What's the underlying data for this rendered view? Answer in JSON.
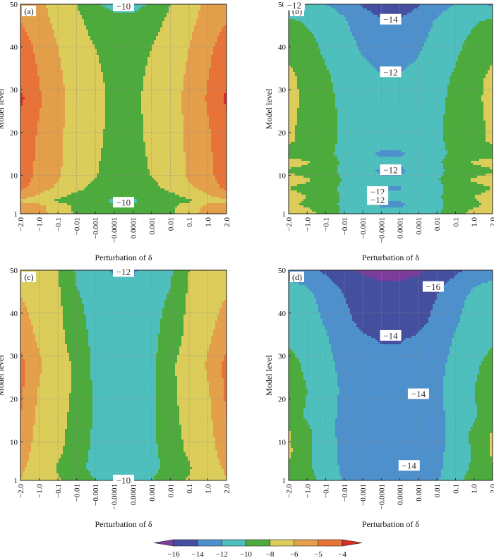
{
  "figure": {
    "colors": {
      "lt16": "#7a3d99",
      "b16_14": "#454f9f",
      "b14_12": "#4e90cc",
      "b12_10": "#4ebfbd",
      "b10_8": "#4cab3c",
      "b8_6": "#dccc59",
      "b6_5": "#e39f4a",
      "b5_4": "#e77338",
      "gt4": "#d62b26"
    },
    "colorbar": {
      "ticks": [
        "-16",
        "-14",
        "-12",
        "-10",
        "-8",
        "-6",
        "-5",
        "-4"
      ]
    }
  },
  "chart_data": [
    {
      "type": "heatmap",
      "panel_label": "(a)",
      "xlabel": "Perturbation of δ",
      "ylabel": "Model level",
      "x_ticks": [
        "-2.0",
        "-1.0",
        "-0.1",
        "-0.01",
        "-0.001",
        "-0.0001",
        "0.0001",
        "0.001",
        "0.01",
        "0.1",
        "1.0",
        "2.0"
      ],
      "y_ticks": [
        1,
        10,
        20,
        30,
        40,
        50
      ],
      "ylim": [
        1,
        50
      ],
      "grid": true,
      "contour_levels": [
        -16,
        -14,
        -12,
        -10,
        -8,
        -6,
        -5,
        -4
      ],
      "contour_labels": [
        {
          "text": "-10",
          "x_index": 5.5,
          "level": 49.6
        },
        {
          "text": "-10",
          "x_index": 5.5,
          "level": 3.7
        }
      ],
      "profile": [
        {
          "level": 1,
          "values": [
            -5.2,
            -5.5,
            -6.5,
            -8.4,
            -8.6,
            -8.8,
            -8.8,
            -8.6,
            -8.4,
            -6.5,
            -5.5,
            -5.2
          ]
        },
        {
          "level": 3,
          "values": [
            -5.3,
            -5.7,
            -6.8,
            -8.6,
            -9.2,
            -9.6,
            -9.6,
            -9.2,
            -8.6,
            -6.8,
            -5.7,
            -5.3
          ]
        },
        {
          "level": 4,
          "values": [
            -6.2,
            -7.0,
            -8.5,
            -9.2,
            -9.8,
            -10.3,
            -10.3,
            -9.8,
            -9.2,
            -8.5,
            -7.0,
            -6.2
          ]
        },
        {
          "level": 5,
          "values": [
            -5.6,
            -6.2,
            -7.5,
            -8.8,
            -9.2,
            -9.4,
            -9.4,
            -9.2,
            -8.8,
            -7.5,
            -6.2,
            -5.6
          ]
        },
        {
          "level": 7,
          "values": [
            -4.8,
            -5.4,
            -6.2,
            -7.4,
            -8.6,
            -9.2,
            -9.2,
            -8.6,
            -7.4,
            -6.2,
            -5.4,
            -4.8
          ]
        },
        {
          "level": 10,
          "values": [
            -4.6,
            -5.2,
            -5.8,
            -6.9,
            -7.9,
            -8.8,
            -8.8,
            -7.9,
            -6.9,
            -5.8,
            -5.2,
            -4.6
          ]
        },
        {
          "level": 20,
          "values": [
            -4.4,
            -5.1,
            -5.7,
            -6.7,
            -7.5,
            -8.6,
            -8.6,
            -7.5,
            -6.7,
            -5.7,
            -5.1,
            -4.4
          ]
        },
        {
          "level": 28,
          "values": [
            -3.8,
            -4.9,
            -5.6,
            -6.6,
            -7.4,
            -8.5,
            -8.5,
            -7.4,
            -6.6,
            -5.6,
            -4.9,
            -3.8
          ]
        },
        {
          "level": 32,
          "values": [
            -4.2,
            -5.0,
            -5.7,
            -6.7,
            -7.5,
            -8.6,
            -8.6,
            -7.5,
            -6.7,
            -5.7,
            -5.0,
            -4.2
          ]
        },
        {
          "level": 40,
          "values": [
            -4.6,
            -5.2,
            -6.0,
            -7.0,
            -8.0,
            -8.9,
            -8.9,
            -8.0,
            -7.0,
            -6.0,
            -5.2,
            -4.6
          ]
        },
        {
          "level": 46,
          "values": [
            -5.0,
            -5.5,
            -6.3,
            -7.5,
            -8.8,
            -9.3,
            -9.3,
            -8.8,
            -7.5,
            -6.3,
            -5.5,
            -5.0
          ]
        },
        {
          "level": 50,
          "values": [
            -5.2,
            -5.7,
            -6.6,
            -8.0,
            -9.8,
            -10.6,
            -10.6,
            -9.8,
            -8.0,
            -6.6,
            -5.7,
            -5.2
          ]
        }
      ]
    },
    {
      "type": "heatmap",
      "panel_label": "(b)",
      "xlabel": "Perturbation of δ",
      "ylabel": "Model level",
      "x_ticks": [
        "-2.0",
        "-1.0",
        "-0.1",
        "-0.01",
        "-0.001",
        "-0.0001",
        "0.0001",
        "0.001",
        "0.01",
        "0.1",
        "1.0",
        "2.0"
      ],
      "y_ticks": [
        1,
        10,
        20,
        30,
        40,
        50
      ],
      "ylim": [
        1,
        50
      ],
      "grid": true,
      "contour_levels": [
        -16,
        -14,
        -12,
        -10,
        -8,
        -6,
        -5,
        -4
      ],
      "contour_labels": [
        {
          "text": "-12",
          "x_index": 0.3,
          "level": 49.8
        },
        {
          "text": "-14",
          "x_index": 5.5,
          "level": 46.5
        },
        {
          "text": "-12",
          "x_index": 5.5,
          "level": 34.2
        },
        {
          "text": "-12",
          "x_index": 5.5,
          "level": 11.3
        },
        {
          "text": "-12",
          "x_index": 4.8,
          "level": 6.2
        },
        {
          "text": "-12",
          "x_index": 4.8,
          "level": 4.3
        }
      ],
      "profile": [
        {
          "level": 1,
          "values": [
            -7.0,
            -7.4,
            -8.5,
            -10.4,
            -11.0,
            -11.4,
            -11.4,
            -11.0,
            -10.4,
            -8.5,
            -7.5,
            -7.0
          ]
        },
        {
          "level": 3,
          "values": [
            -7.8,
            -8.2,
            -9.0,
            -10.5,
            -11.5,
            -12.2,
            -12.2,
            -11.5,
            -10.5,
            -9.0,
            -8.2,
            -7.8
          ]
        },
        {
          "level": 5,
          "values": [
            -7.6,
            -8.0,
            -8.8,
            -10.4,
            -11.3,
            -11.8,
            -11.8,
            -11.3,
            -10.4,
            -8.8,
            -8.0,
            -7.6
          ]
        },
        {
          "level": 7,
          "values": [
            -8.0,
            -8.4,
            -9.0,
            -10.6,
            -11.4,
            -12.1,
            -12.1,
            -11.4,
            -10.6,
            -9.0,
            -8.4,
            -8.0
          ]
        },
        {
          "level": 9,
          "values": [
            -7.4,
            -7.8,
            -8.6,
            -10.2,
            -11.0,
            -11.6,
            -11.6,
            -11.0,
            -10.2,
            -8.6,
            -7.8,
            -7.4
          ]
        },
        {
          "level": 11,
          "values": [
            -8.2,
            -8.6,
            -9.2,
            -10.6,
            -11.5,
            -12.3,
            -12.3,
            -11.5,
            -10.6,
            -9.2,
            -8.6,
            -8.2
          ]
        },
        {
          "level": 13,
          "values": [
            -7.4,
            -7.8,
            -8.8,
            -10.4,
            -11.2,
            -11.6,
            -11.6,
            -11.2,
            -10.4,
            -8.8,
            -7.8,
            -7.4
          ]
        },
        {
          "level": 15,
          "values": [
            -8.6,
            -8.8,
            -9.4,
            -10.8,
            -11.6,
            -12.2,
            -12.2,
            -11.6,
            -10.8,
            -9.4,
            -8.8,
            -8.6
          ]
        },
        {
          "level": 18,
          "values": [
            -7.8,
            -8.4,
            -9.2,
            -10.5,
            -11.1,
            -11.5,
            -11.5,
            -11.1,
            -10.5,
            -9.2,
            -8.4,
            -7.8
          ]
        },
        {
          "level": 22,
          "values": [
            -7.6,
            -8.6,
            -9.4,
            -10.3,
            -11.0,
            -11.4,
            -11.4,
            -11.0,
            -10.3,
            -9.4,
            -8.6,
            -7.6
          ]
        },
        {
          "level": 28,
          "values": [
            -7.2,
            -8.6,
            -9.6,
            -10.4,
            -11.0,
            -11.5,
            -11.5,
            -11.0,
            -10.4,
            -9.6,
            -8.6,
            -7.2
          ]
        },
        {
          "level": 33,
          "values": [
            -7.4,
            -8.8,
            -9.8,
            -10.5,
            -11.3,
            -11.9,
            -11.9,
            -11.3,
            -10.5,
            -9.8,
            -8.8,
            -7.4
          ]
        },
        {
          "level": 37,
          "values": [
            -8.2,
            -9.2,
            -10.1,
            -11.0,
            -11.9,
            -12.5,
            -12.5,
            -11.9,
            -11.0,
            -10.1,
            -9.2,
            -8.2
          ]
        },
        {
          "level": 42,
          "values": [
            -8.8,
            -9.6,
            -10.5,
            -11.4,
            -12.5,
            -13.2,
            -13.2,
            -12.5,
            -11.4,
            -10.5,
            -9.6,
            -8.8
          ]
        },
        {
          "level": 46,
          "values": [
            -9.6,
            -10.2,
            -11.0,
            -11.8,
            -13.0,
            -13.8,
            -13.8,
            -13.0,
            -11.8,
            -11.0,
            -10.2,
            -9.6
          ]
        },
        {
          "level": 50,
          "values": [
            -12.2,
            -12.0,
            -12.0,
            -12.6,
            -14.2,
            -14.9,
            -14.9,
            -14.2,
            -12.6,
            -12.0,
            -12.0,
            -12.2
          ]
        }
      ]
    },
    {
      "type": "heatmap",
      "panel_label": "(c)",
      "xlabel": "Perturbation of δ",
      "ylabel": "Model level",
      "x_ticks": [
        "-2.0",
        "-1.0",
        "-0.1",
        "-0.01",
        "-0.001",
        "-0.0001",
        "0.0001",
        "0.001",
        "0.01",
        "0.1",
        "1.0",
        "2.0"
      ],
      "y_ticks": [
        1,
        10,
        20,
        30,
        40,
        50
      ],
      "ylim": [
        1,
        50
      ],
      "grid": true,
      "contour_levels": [
        -16,
        -14,
        -12,
        -10,
        -8,
        -6,
        -5,
        -4
      ],
      "contour_labels": [
        {
          "text": "-12",
          "x_index": 5.5,
          "level": 49.7
        },
        {
          "text": "-10",
          "x_index": 5.5,
          "level": 1.1
        }
      ],
      "profile": [
        {
          "level": 1,
          "values": [
            -6.0,
            -6.8,
            -7.8,
            -8.8,
            -10.0,
            -10.4,
            -10.4,
            -10.0,
            -8.8,
            -7.8,
            -6.8,
            -6.0
          ]
        },
        {
          "level": 4,
          "values": [
            -5.8,
            -6.6,
            -8.2,
            -9.4,
            -10.6,
            -11.0,
            -11.0,
            -10.6,
            -9.4,
            -8.2,
            -6.6,
            -5.8
          ]
        },
        {
          "level": 8,
          "values": [
            -5.4,
            -6.5,
            -7.6,
            -9.0,
            -10.5,
            -11.1,
            -11.1,
            -10.5,
            -9.0,
            -7.6,
            -6.5,
            -5.4
          ]
        },
        {
          "level": 15,
          "values": [
            -5.0,
            -6.3,
            -7.4,
            -8.6,
            -10.3,
            -11.0,
            -11.0,
            -10.3,
            -8.6,
            -7.4,
            -6.3,
            -5.0
          ]
        },
        {
          "level": 22,
          "values": [
            -4.8,
            -6.1,
            -7.2,
            -8.4,
            -10.4,
            -11.1,
            -11.1,
            -10.4,
            -8.4,
            -7.2,
            -6.1,
            -4.8
          ]
        },
        {
          "level": 28,
          "values": [
            -4.7,
            -5.8,
            -7.0,
            -8.4,
            -10.5,
            -11.2,
            -11.2,
            -10.5,
            -8.4,
            -7.0,
            -5.8,
            -4.7
          ]
        },
        {
          "level": 34,
          "values": [
            -5.2,
            -6.2,
            -7.4,
            -9.0,
            -10.6,
            -11.3,
            -11.3,
            -10.6,
            -9.0,
            -7.4,
            -6.2,
            -5.2
          ]
        },
        {
          "level": 42,
          "values": [
            -5.8,
            -6.6,
            -7.6,
            -9.6,
            -10.8,
            -11.5,
            -11.5,
            -10.8,
            -9.6,
            -7.6,
            -6.6,
            -5.8
          ]
        },
        {
          "level": 46,
          "values": [
            -6.2,
            -6.8,
            -7.8,
            -10.0,
            -11.0,
            -11.7,
            -11.7,
            -11.0,
            -10.0,
            -7.8,
            -6.8,
            -6.2
          ]
        },
        {
          "level": 50,
          "values": [
            -6.6,
            -7.0,
            -8.0,
            -10.3,
            -11.5,
            -12.2,
            -12.2,
            -11.5,
            -10.3,
            -8.0,
            -7.0,
            -6.6
          ]
        }
      ]
    },
    {
      "type": "heatmap",
      "panel_label": "(d)",
      "xlabel": "Perturbation of δ",
      "ylabel": "Model level",
      "x_ticks": [
        "-2.0",
        "-1.0",
        "-0.1",
        "-0.01",
        "-0.001",
        "-0.0001",
        "0.0001",
        "0.001",
        "0.01",
        "0.1",
        "1.0",
        "2.0"
      ],
      "y_ticks": [
        1,
        10,
        20,
        30,
        40,
        50
      ],
      "ylim": [
        1,
        50
      ],
      "grid": true,
      "contour_levels": [
        -16,
        -14,
        -12,
        -10,
        -8,
        -6,
        -5,
        -4
      ],
      "contour_labels": [
        {
          "text": "-16",
          "x_index": 7.8,
          "level": 46.2
        },
        {
          "text": "-14",
          "x_index": 5.5,
          "level": 34.8
        },
        {
          "text": "-14",
          "x_index": 7.0,
          "level": 21.2
        },
        {
          "text": "-14",
          "x_index": 6.5,
          "level": 4.5
        }
      ],
      "profile": [
        {
          "level": 1,
          "values": [
            -8.5,
            -9.5,
            -10.4,
            -12.2,
            -12.8,
            -13.2,
            -13.2,
            -12.8,
            -12.2,
            -10.4,
            -9.5,
            -8.5
          ]
        },
        {
          "level": 4,
          "values": [
            -8.2,
            -9.8,
            -10.6,
            -12.6,
            -13.4,
            -13.7,
            -13.7,
            -13.4,
            -12.6,
            -10.6,
            -9.8,
            -8.2
          ]
        },
        {
          "level": 8,
          "values": [
            -7.6,
            -9.8,
            -10.8,
            -12.8,
            -13.2,
            -13.4,
            -13.4,
            -13.2,
            -12.8,
            -10.8,
            -9.8,
            -7.6
          ]
        },
        {
          "level": 12,
          "values": [
            -7.8,
            -9.6,
            -11.0,
            -12.8,
            -13.2,
            -13.4,
            -13.4,
            -13.2,
            -12.8,
            -11.0,
            -9.6,
            -7.8
          ]
        },
        {
          "level": 16,
          "values": [
            -9.2,
            -10.2,
            -11.2,
            -12.6,
            -13.3,
            -13.6,
            -13.6,
            -13.3,
            -12.6,
            -11.2,
            -10.2,
            -9.2
          ]
        },
        {
          "level": 22,
          "values": [
            -9.0,
            -10.0,
            -11.0,
            -12.4,
            -13.2,
            -13.6,
            -13.6,
            -13.2,
            -12.4,
            -11.0,
            -10.0,
            -9.0
          ]
        },
        {
          "level": 28,
          "values": [
            -9.2,
            -10.4,
            -11.4,
            -12.6,
            -13.2,
            -13.6,
            -13.6,
            -13.2,
            -12.6,
            -11.4,
            -10.4,
            -9.2
          ]
        },
        {
          "level": 34,
          "values": [
            -10.4,
            -11.0,
            -11.8,
            -13.0,
            -13.8,
            -14.1,
            -14.1,
            -13.8,
            -13.0,
            -11.8,
            -11.0,
            -10.4
          ]
        },
        {
          "level": 38,
          "values": [
            -10.6,
            -11.2,
            -12.2,
            -13.6,
            -14.4,
            -14.8,
            -14.8,
            -14.4,
            -13.6,
            -12.2,
            -11.2,
            -10.6
          ]
        },
        {
          "level": 44,
          "values": [
            -11.0,
            -11.6,
            -12.6,
            -14.0,
            -14.8,
            -15.2,
            -15.2,
            -14.8,
            -14.0,
            -12.6,
            -11.6,
            -11.0
          ]
        },
        {
          "level": 47,
          "values": [
            -11.8,
            -12.2,
            -13.4,
            -14.6,
            -15.5,
            -15.9,
            -15.9,
            -15.5,
            -14.6,
            -13.4,
            -12.2,
            -11.8
          ]
        },
        {
          "level": 50,
          "values": [
            -13.0,
            -13.4,
            -14.4,
            -15.6,
            -16.3,
            -16.6,
            -16.6,
            -16.3,
            -15.6,
            -14.4,
            -13.4,
            -13.0
          ]
        }
      ]
    }
  ]
}
